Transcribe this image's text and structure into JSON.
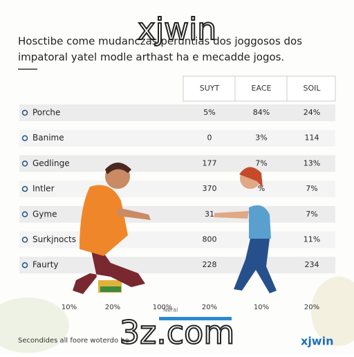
{
  "watermark": "xjwin",
  "heading": [
    "Hosctibe come mudanczas peruntias dos joggosos dos",
    "impatoral yatel modle arthast ha e mecadde jogos."
  ],
  "table": {
    "columns": [
      "SUYT",
      "EACE",
      "SOIL"
    ],
    "rows": [
      {
        "label": "Porche",
        "cells": [
          "5%",
          "84%",
          "24%"
        ]
      },
      {
        "label": "Banime",
        "cells": [
          "0",
          "3%",
          "114"
        ]
      },
      {
        "label": "Gedlinge",
        "cells": [
          "177",
          "7%",
          "13%"
        ]
      },
      {
        "label": "Intler",
        "cells": [
          "370",
          "%",
          "7%"
        ]
      },
      {
        "label": "Gyme",
        "cells": [
          "31",
          null,
          "7%"
        ]
      },
      {
        "label": "Surkjnocts",
        "cells": [
          "800",
          null,
          "11%"
        ]
      },
      {
        "label": "Faurty",
        "cells": [
          "228",
          null,
          "234"
        ]
      }
    ]
  },
  "axis_labels": [
    "10%",
    "20%",
    "100%",
    "20%",
    "10%",
    "20%"
  ],
  "bar_label": "Neral",
  "site": "3z.com",
  "footer": {
    "text": "Secondides all foore woterdo be",
    "logo": "xjwin"
  }
}
